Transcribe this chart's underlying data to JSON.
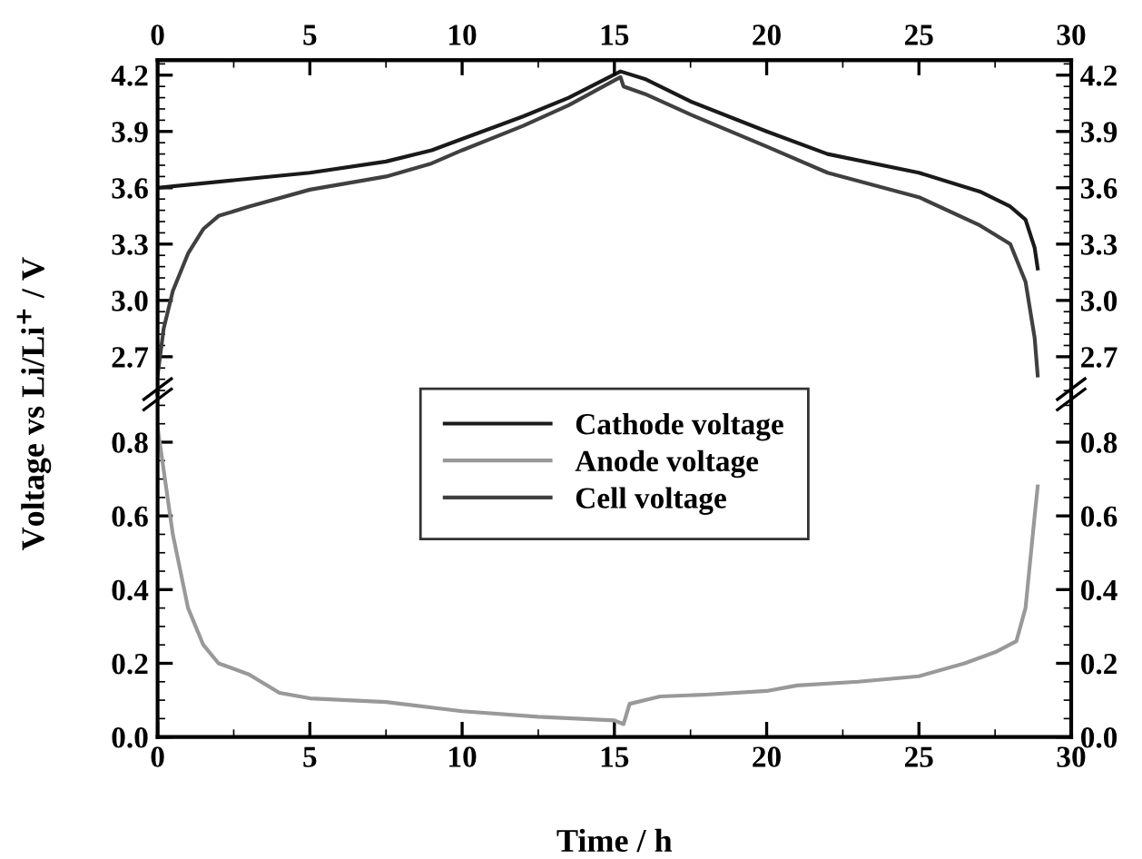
{
  "chart_data": [
    {
      "type": "line",
      "ylabel": "Voltage vs Li/Li$^{+}$ / V",
      "xlim": [
        0,
        30
      ],
      "x2lim": [
        0,
        30
      ],
      "x2ticks": [
        0,
        5,
        10,
        15,
        20,
        25,
        30
      ],
      "ylim": [
        2.5,
        4.28
      ],
      "yticks": [
        2.7,
        {
          "value": 3,
          "label": "3.0"
        },
        3.3,
        3.6,
        3.9,
        4.2
      ],
      "y2lim": [
        2.5,
        4.28
      ],
      "y2ticks": [
        2.7,
        {
          "value": 3,
          "label": "3.0"
        },
        3.3,
        3.6,
        3.9,
        4.2
      ],
      "tick_labels": "y",
      "legend": "bottom",
      "grid": false,
      "line_style": "solid",
      "marker": "none",
      "series": [
        {
          "name": "Cathode voltage",
          "color": "#1a1a1a",
          "x": [
            0,
            2.5,
            5,
            7.5,
            9,
            10,
            12,
            13.5,
            15.2,
            16,
            17.5,
            20,
            22,
            25,
            27,
            28,
            28.5,
            28.8,
            28.9
          ],
          "values": [
            3.6,
            3.64,
            3.68,
            3.74,
            3.8,
            3.86,
            3.98,
            4.08,
            4.22,
            4.18,
            4.06,
            3.9,
            3.78,
            3.68,
            3.58,
            3.5,
            3.43,
            3.28,
            3.17
          ]
        },
        {
          "name": "Cell voltage",
          "color": "#404040",
          "x": [
            0,
            0.2,
            0.5,
            1,
            1.5,
            2,
            3,
            5,
            7.5,
            9,
            10,
            12,
            13.5,
            15.2,
            15.3,
            16,
            17.5,
            20,
            22,
            25,
            27,
            28,
            28.5,
            28.8,
            28.9
          ],
          "values": [
            2.6,
            2.85,
            3.05,
            3.25,
            3.38,
            3.45,
            3.5,
            3.59,
            3.66,
            3.73,
            3.8,
            3.93,
            4.04,
            4.19,
            4.14,
            4.1,
            3.99,
            3.82,
            3.68,
            3.55,
            3.4,
            3.3,
            3.1,
            2.8,
            2.6
          ]
        }
      ]
    },
    {
      "type": "line",
      "xlabel": "Time / h",
      "xlim": [
        0,
        30
      ],
      "xticks": [
        0,
        5,
        10,
        15,
        20,
        25,
        30
      ],
      "ylim": [
        0,
        0.93
      ],
      "yticks": [
        {
          "value": 0,
          "label": "0.0"
        },
        0.2,
        0.4,
        0.6,
        0.8
      ],
      "y2lim": [
        0,
        0.93
      ],
      "y2ticks": [
        {
          "value": 0,
          "label": "0.0"
        },
        0.2,
        0.4,
        0.6,
        0.8
      ],
      "grid": false,
      "line_style": "solid",
      "marker": "none",
      "series": [
        {
          "name": "Anode voltage",
          "color": "#999999",
          "x": [
            0,
            0.5,
            1,
            1.5,
            2,
            3,
            4,
            5,
            7.5,
            10,
            12.5,
            15,
            15.3,
            15.5,
            16.5,
            18,
            20,
            21,
            23,
            25,
            26.5,
            27.5,
            28.2,
            28.5,
            28.8,
            28.9
          ],
          "values": [
            0.84,
            0.55,
            0.35,
            0.25,
            0.2,
            0.17,
            0.12,
            0.105,
            0.095,
            0.07,
            0.055,
            0.045,
            0.035,
            0.09,
            0.11,
            0.115,
            0.125,
            0.14,
            0.15,
            0.165,
            0.2,
            0.23,
            0.26,
            0.35,
            0.6,
            0.68
          ]
        }
      ]
    }
  ]
}
